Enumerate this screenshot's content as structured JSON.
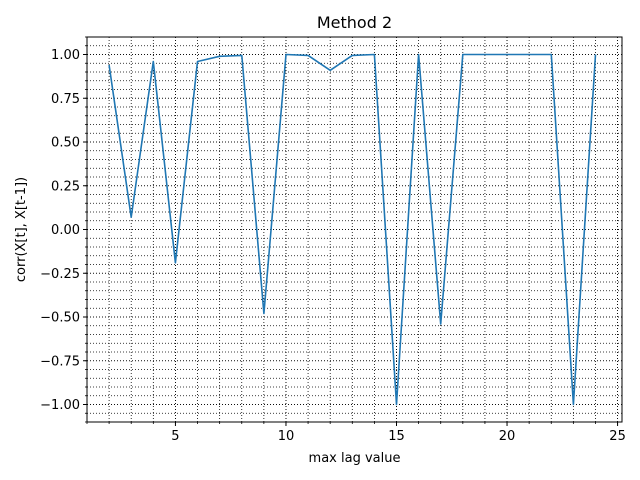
{
  "chart_data": {
    "type": "line",
    "title": "Method 2",
    "xlabel": "max lag value",
    "ylabel": "corr(X[t], X[t-1])",
    "xlim": [
      1,
      25.2
    ],
    "ylim": [
      -1.1,
      1.1
    ],
    "x_ticks": [
      5,
      10,
      15,
      20,
      25
    ],
    "y_ticks": [
      -1.0,
      -0.75,
      -0.5,
      -0.25,
      0.0,
      0.25,
      0.5,
      0.75,
      1.0
    ],
    "x_tick_labels": [
      "5",
      "10",
      "15",
      "20",
      "25"
    ],
    "y_tick_labels": [
      "−1.00",
      "−0.75",
      "−0.50",
      "−0.25",
      "0.00",
      "0.25",
      "0.50",
      "0.75",
      "1.00"
    ],
    "grid": "major and minor, dotted",
    "series": [
      {
        "color": "#1f77b4",
        "x": [
          2,
          3,
          4,
          5,
          6,
          7,
          8,
          9,
          10,
          11,
          12,
          13,
          14,
          15,
          16,
          17,
          18,
          19,
          20,
          21,
          22,
          23,
          24
        ],
        "values": [
          0.94,
          0.07,
          0.96,
          -0.19,
          0.96,
          0.99,
          0.995,
          -0.48,
          1.0,
          0.995,
          0.91,
          0.995,
          1.0,
          -1.0,
          1.0,
          -0.54,
          1.0,
          1.0,
          1.0,
          1.0,
          1.0,
          -1.0,
          1.0
        ]
      }
    ]
  }
}
